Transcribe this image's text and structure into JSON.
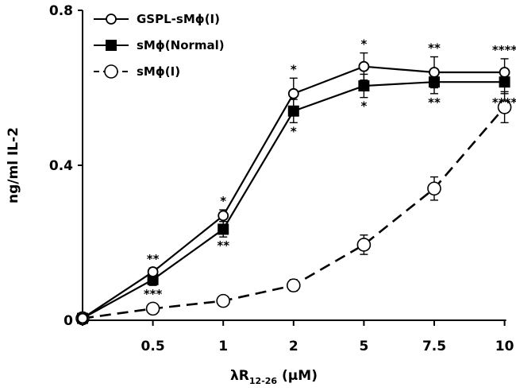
{
  "chart_data": {
    "type": "line",
    "categories": [
      "0",
      "0.5",
      "1",
      "2",
      "5",
      "7.5",
      "10"
    ],
    "x_tick_labels": [
      "",
      "0.5",
      "1",
      "2",
      "5",
      "7.5",
      "10"
    ],
    "xlabel_main": "λR",
    "xlabel_sub": "12-26",
    "xlabel_unit": " (μM)",
    "ylabel": "ng/ml IL-2",
    "ylim": [
      0,
      0.8
    ],
    "y_ticks": [
      0,
      0.4,
      0.8
    ],
    "y_tick_labels": [
      "0",
      "0.4",
      "0.8"
    ],
    "grid": false,
    "legend_position": "top-left",
    "series": [
      {
        "name": "GSPL-sMϕ(I)",
        "marker": "small-open-circle",
        "dash": "solid",
        "values": [
          0.005,
          0.125,
          0.27,
          0.585,
          0.655,
          0.64,
          0.64
        ],
        "errors": [
          0.005,
          0.01,
          0.015,
          0.04,
          0.035,
          0.04,
          0.035
        ],
        "labels_above": [
          "",
          "**",
          "*",
          "*",
          "*",
          "**",
          "****"
        ]
      },
      {
        "name": "sMϕ(Normal)",
        "marker": "filled-square",
        "dash": "solid",
        "values": [
          0.005,
          0.105,
          0.235,
          0.54,
          0.605,
          0.615,
          0.615
        ],
        "errors": [
          0.005,
          0.015,
          0.02,
          0.03,
          0.03,
          0.03,
          0.03
        ],
        "labels_below": [
          "",
          "***",
          "**",
          "*",
          "*",
          "**",
          "****"
        ]
      },
      {
        "name": "sMϕ(I)",
        "marker": "open-circle",
        "dash": "dashed",
        "values": [
          0.005,
          0.03,
          0.05,
          0.09,
          0.195,
          0.34,
          0.55
        ],
        "errors": [
          0.005,
          0.01,
          0.008,
          0.015,
          0.025,
          0.03,
          0.04
        ]
      }
    ]
  }
}
